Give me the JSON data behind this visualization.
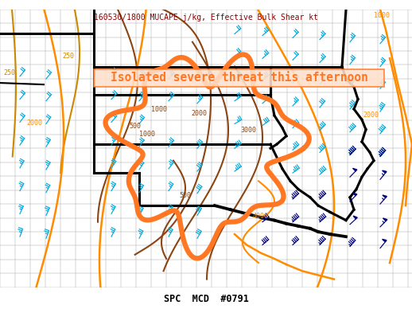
{
  "title": "160530/1800 MUCAPE j/kg, Effective Bulk Shear kt",
  "footer": "SPC  MCD  #0791",
  "annotation_text": "Isolated severe threat this afternoon",
  "bg_color": "#ffffff",
  "title_color": "#8B0000",
  "footer_color": "#000000",
  "annotation_color": "#FF7722",
  "annotation_bg": "#FFE0CC",
  "cape_contour_color": "#8B4513",
  "shear_contour_color": "#FF8C00",
  "wind_barb_color_light": "#00AADD",
  "wind_barb_color_dark": "#000080",
  "state_border_color": "#000000",
  "county_border_color": "#AAAAAA",
  "mcd_border_color": "#FF7722",
  "cape_label_color_250": "#CC8800",
  "figsize": [
    5.18,
    3.88
  ],
  "dpi": 100
}
